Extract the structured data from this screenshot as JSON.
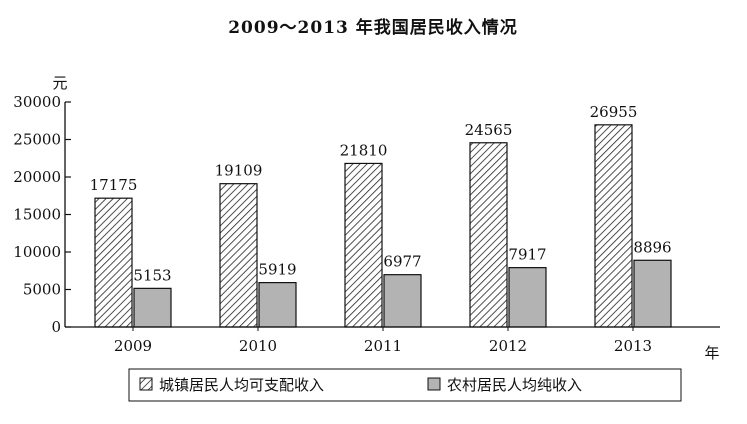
{
  "chart_data": {
    "type": "bar",
    "title": "2009～2013 年我国居民收入情况",
    "ylabel": "元",
    "xlabel": "年",
    "categories": [
      "2009",
      "2010",
      "2011",
      "2012",
      "2013"
    ],
    "series": [
      {
        "name": "城镇居民人均可支配收入",
        "values": [
          17175,
          19109,
          21810,
          24565,
          26955
        ],
        "pattern": "hatched"
      },
      {
        "name": "农村居民人均纯收入",
        "values": [
          5153,
          5919,
          6977,
          7917,
          8896
        ],
        "color": "#b3b3b3"
      }
    ],
    "ylim": [
      0,
      30000
    ],
    "yticks": [
      "0",
      "5000",
      "10000",
      "15000",
      "20000",
      "25000",
      "30000"
    ],
    "legend_position": "bottom"
  }
}
